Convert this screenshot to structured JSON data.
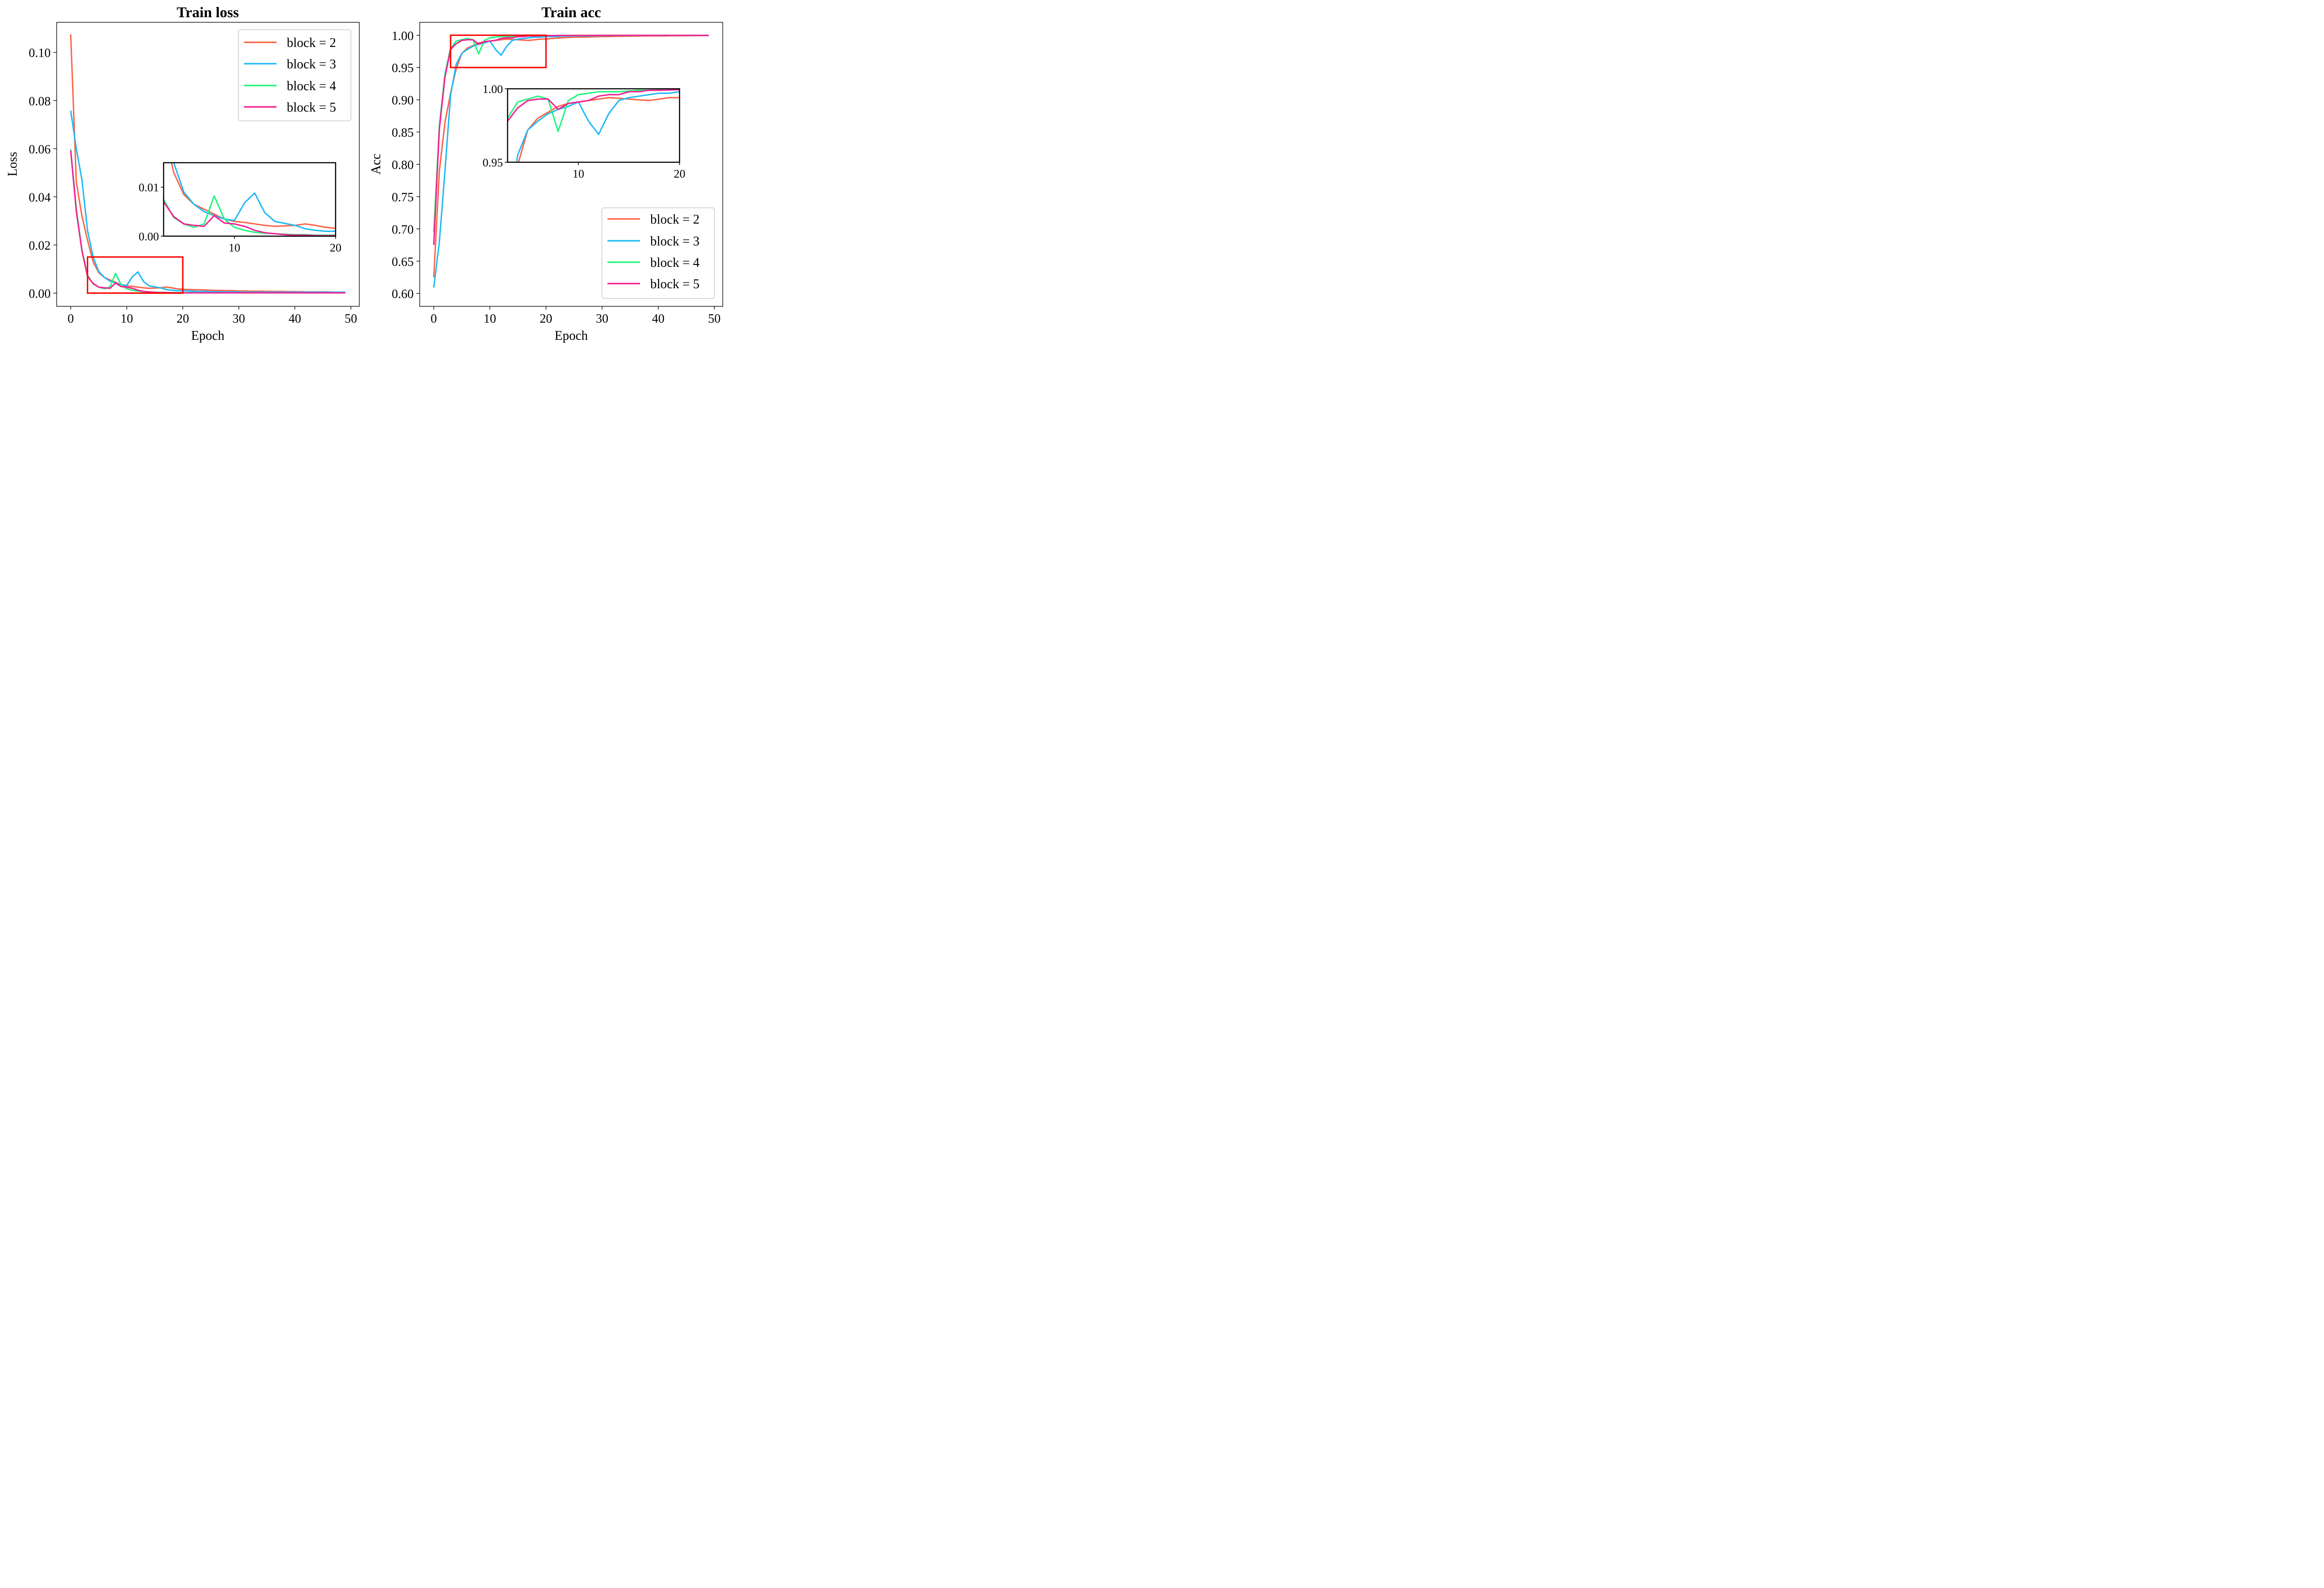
{
  "figure": {
    "colors": {
      "block_2": "#FF6347",
      "block_3": "#1EB9F5",
      "block_4": "#1EF57A",
      "block_5": "#F51E91",
      "zoom_box": "#FF0000"
    }
  },
  "chart_data": [
    {
      "id": "train_loss",
      "type": "line",
      "title": "Train loss",
      "xlabel": "Epoch",
      "ylabel": "Loss",
      "xlim": [
        -2.5,
        51.5
      ],
      "ylim": [
        -0.0055,
        0.1125
      ],
      "xticks": [
        0,
        10,
        20,
        30,
        40,
        50
      ],
      "yticks": [
        0.0,
        0.02,
        0.04,
        0.06,
        0.08,
        0.1
      ],
      "ytick_labels": [
        "0.00",
        "0.02",
        "0.04",
        "0.06",
        "0.08",
        "0.10"
      ],
      "grid": false,
      "legend": {
        "placement": "top-right",
        "entries": [
          "block = 2",
          "block = 3",
          "block = 4",
          "block = 5"
        ]
      },
      "zoom_region": {
        "x": [
          3,
          20
        ],
        "y": [
          0.0,
          0.015
        ]
      },
      "inset": {
        "xlim": [
          3,
          20
        ],
        "ylim": [
          0.0,
          0.015
        ],
        "xticks": [
          10,
          20
        ],
        "yticks": [
          0.0,
          0.01
        ],
        "ytick_labels": [
          "0.00",
          "0.01"
        ]
      },
      "x": [
        0,
        1,
        2,
        3,
        4,
        5,
        6,
        7,
        8,
        9,
        10,
        11,
        12,
        13,
        14,
        15,
        16,
        17,
        18,
        19,
        20,
        21,
        22,
        23,
        24,
        25,
        26,
        27,
        28,
        29,
        30,
        31,
        32,
        33,
        34,
        35,
        36,
        37,
        38,
        39,
        40,
        41,
        42,
        43,
        44,
        45,
        46,
        47,
        48,
        49
      ],
      "series": [
        {
          "name": "block = 2",
          "color_key": "block_2",
          "values": [
            0.1075,
            0.046,
            0.032,
            0.022,
            0.013,
            0.0085,
            0.0065,
            0.0055,
            0.0045,
            0.0035,
            0.003,
            0.0028,
            0.0025,
            0.0022,
            0.002,
            0.0021,
            0.0022,
            0.0025,
            0.0022,
            0.0018,
            0.0016,
            0.0015,
            0.0014,
            0.0014,
            0.0013,
            0.0012,
            0.0011,
            0.0011,
            0.001,
            0.001,
            0.0009,
            0.0009,
            0.0008,
            0.0008,
            0.0008,
            0.0007,
            0.0007,
            0.0007,
            0.0007,
            0.0006,
            0.0006,
            0.0006,
            0.0005,
            0.0005,
            0.0005,
            0.0005,
            0.0005,
            0.0004,
            0.0004,
            0.0004
          ]
        },
        {
          "name": "block = 3",
          "color_key": "block_3",
          "values": [
            0.0758,
            0.06,
            0.047,
            0.026,
            0.015,
            0.009,
            0.0065,
            0.005,
            0.0042,
            0.0035,
            0.0032,
            0.0068,
            0.0088,
            0.0048,
            0.003,
            0.0026,
            0.0022,
            0.0015,
            0.0012,
            0.001,
            0.001,
            0.0009,
            0.0008,
            0.0007,
            0.0007,
            0.0006,
            0.0006,
            0.0005,
            0.0005,
            0.0005,
            0.0005,
            0.0004,
            0.0004,
            0.0004,
            0.0004,
            0.0004,
            0.0004,
            0.0004,
            0.0004,
            0.0004,
            0.0004,
            0.0004,
            0.0004,
            0.0004,
            0.0004,
            0.0004,
            0.0004,
            0.0004,
            0.0004,
            0.0004
          ]
        },
        {
          "name": "block = 4",
          "color_key": "block_4",
          "values": [
            0.0598,
            0.035,
            0.018,
            0.0075,
            0.0038,
            0.0025,
            0.0018,
            0.0025,
            0.0082,
            0.0035,
            0.0018,
            0.0012,
            0.0008,
            0.0006,
            0.0005,
            0.0004,
            0.0003,
            0.0003,
            0.0002,
            0.0002,
            0.0002,
            0.0002,
            0.0002,
            0.0001,
            0.0001,
            0.0001,
            0.0001,
            0.0001,
            0.0001,
            0.0001,
            0.0001,
            0.0001,
            0.0001,
            0.0001,
            0.0001,
            0.0001,
            0.0001,
            0.0001,
            0.0001,
            0.0001,
            0.0001,
            0.0001,
            0.0001,
            0.0001,
            0.0001,
            0.0001,
            0.0001,
            0.0001,
            0.0001,
            0.0001
          ]
        },
        {
          "name": "block = 5",
          "color_key": "block_5",
          "values": [
            0.0592,
            0.034,
            0.0175,
            0.007,
            0.004,
            0.0025,
            0.0022,
            0.002,
            0.0042,
            0.0027,
            0.0025,
            0.002,
            0.0012,
            0.0007,
            0.0005,
            0.0003,
            0.0002,
            0.0002,
            0.0001,
            0.0001,
            0.0001,
            0.0001,
            0.0001,
            0.0001,
            0.0001,
            0.0001,
            0.0001,
            0.0001,
            0.0001,
            0.0001,
            0.0001,
            0.0001,
            0.0001,
            0.0001,
            0.0001,
            0.0001,
            0.0001,
            0.0001,
            0.0001,
            0.0001,
            0.0001,
            0.0001,
            0.0001,
            0.0001,
            0.0001,
            0.0001,
            0.0001,
            0.0001,
            0.0001,
            0.0001
          ]
        }
      ]
    },
    {
      "id": "train_acc",
      "type": "line",
      "title": "Train acc",
      "xlabel": "Epoch",
      "ylabel": "Acc",
      "xlim": [
        -2.5,
        51.5
      ],
      "ylim": [
        0.58,
        1.02
      ],
      "xticks": [
        0,
        10,
        20,
        30,
        40,
        50
      ],
      "yticks": [
        0.6,
        0.65,
        0.7,
        0.75,
        0.8,
        0.85,
        0.9,
        0.95,
        1.0
      ],
      "ytick_labels": [
        "0.60",
        "0.65",
        "0.70",
        "0.75",
        "0.80",
        "0.85",
        "0.90",
        "0.95",
        "1.00"
      ],
      "grid": false,
      "legend": {
        "placement": "bottom-right",
        "entries": [
          "block = 2",
          "block = 3",
          "block = 4",
          "block = 5"
        ]
      },
      "zoom_region": {
        "x": [
          3,
          20
        ],
        "y": [
          0.95,
          1.0
        ]
      },
      "inset": {
        "xlim": [
          3,
          20
        ],
        "ylim": [
          0.95,
          1.0
        ],
        "xticks": [
          10,
          20
        ],
        "yticks": [
          0.95,
          1.0
        ],
        "ytick_labels": [
          "0.95",
          "1.00"
        ]
      },
      "x": [
        0,
        1,
        2,
        3,
        4,
        5,
        6,
        7,
        8,
        9,
        10,
        11,
        12,
        13,
        14,
        15,
        16,
        17,
        18,
        19,
        20,
        21,
        22,
        23,
        24,
        25,
        26,
        27,
        28,
        29,
        30,
        31,
        32,
        33,
        34,
        35,
        36,
        37,
        38,
        39,
        40,
        41,
        42,
        43,
        44,
        45,
        46,
        47,
        48,
        49
      ],
      "series": [
        {
          "name": "block = 2",
          "color_key": "block_2",
          "values": [
            0.625,
            0.79,
            0.865,
            0.91,
            0.948,
            0.972,
            0.98,
            0.984,
            0.988,
            0.99,
            0.991,
            0.992,
            0.993,
            0.994,
            0.9935,
            0.993,
            0.9925,
            0.992,
            0.993,
            0.994,
            0.994,
            0.995,
            0.9955,
            0.996,
            0.9965,
            0.997,
            0.997,
            0.9972,
            0.9975,
            0.9977,
            0.998,
            0.998,
            0.9982,
            0.9984,
            0.9985,
            0.9986,
            0.9987,
            0.9988,
            0.9989,
            0.999,
            0.999,
            0.999,
            0.9991,
            0.9992,
            0.9992,
            0.9993,
            0.9994,
            0.9994,
            0.9995,
            0.9995
          ]
        },
        {
          "name": "block = 3",
          "color_key": "block_3",
          "values": [
            0.609,
            0.68,
            0.79,
            0.907,
            0.955,
            0.972,
            0.978,
            0.983,
            0.986,
            0.988,
            0.991,
            0.978,
            0.969,
            0.983,
            0.992,
            0.994,
            0.995,
            0.996,
            0.997,
            0.997,
            0.998,
            0.998,
            0.998,
            0.9985,
            0.9987,
            0.999,
            0.999,
            0.999,
            0.9991,
            0.9992,
            0.9993,
            0.9994,
            0.9994,
            0.9995,
            0.9995,
            0.9996,
            0.9996,
            0.9996,
            0.9997,
            0.9997,
            0.9997,
            0.9998,
            0.9998,
            0.9998,
            0.9998,
            0.9998,
            0.9998,
            0.9998,
            0.9998,
            0.9998
          ]
        },
        {
          "name": "block = 4",
          "color_key": "block_4",
          "values": [
            0.695,
            0.86,
            0.94,
            0.98,
            0.991,
            0.993,
            0.995,
            0.993,
            0.971,
            0.992,
            0.996,
            0.997,
            0.998,
            0.998,
            0.998,
            0.9985,
            0.999,
            0.999,
            0.9992,
            0.9993,
            0.9994,
            0.9995,
            0.9995,
            0.9996,
            0.9996,
            0.9997,
            0.9997,
            0.9997,
            0.9998,
            0.9998,
            0.9998,
            0.9998,
            0.9998,
            0.9998,
            0.9998,
            0.9998,
            0.9998,
            0.9998,
            0.9998,
            0.9998,
            0.9998,
            0.9998,
            0.9998,
            0.9998,
            0.9998,
            0.9998,
            0.9998,
            0.9998,
            0.9998,
            0.9998
          ]
        },
        {
          "name": "block = 5",
          "color_key": "block_5",
          "values": [
            0.675,
            0.855,
            0.935,
            0.978,
            0.987,
            0.992,
            0.993,
            0.993,
            0.986,
            0.99,
            0.991,
            0.992,
            0.995,
            0.996,
            0.996,
            0.998,
            0.998,
            0.999,
            0.999,
            0.9992,
            0.9994,
            0.9995,
            0.9995,
            0.9996,
            0.9996,
            0.9997,
            0.9997,
            0.9997,
            0.9998,
            0.9998,
            0.9998,
            0.9998,
            0.9998,
            0.9998,
            0.9998,
            0.9998,
            0.9998,
            0.9998,
            0.9998,
            0.9998,
            0.9998,
            0.9998,
            0.9998,
            0.9998,
            0.9998,
            0.9998,
            0.9998,
            0.9998,
            0.9998,
            0.9998
          ]
        }
      ]
    }
  ]
}
